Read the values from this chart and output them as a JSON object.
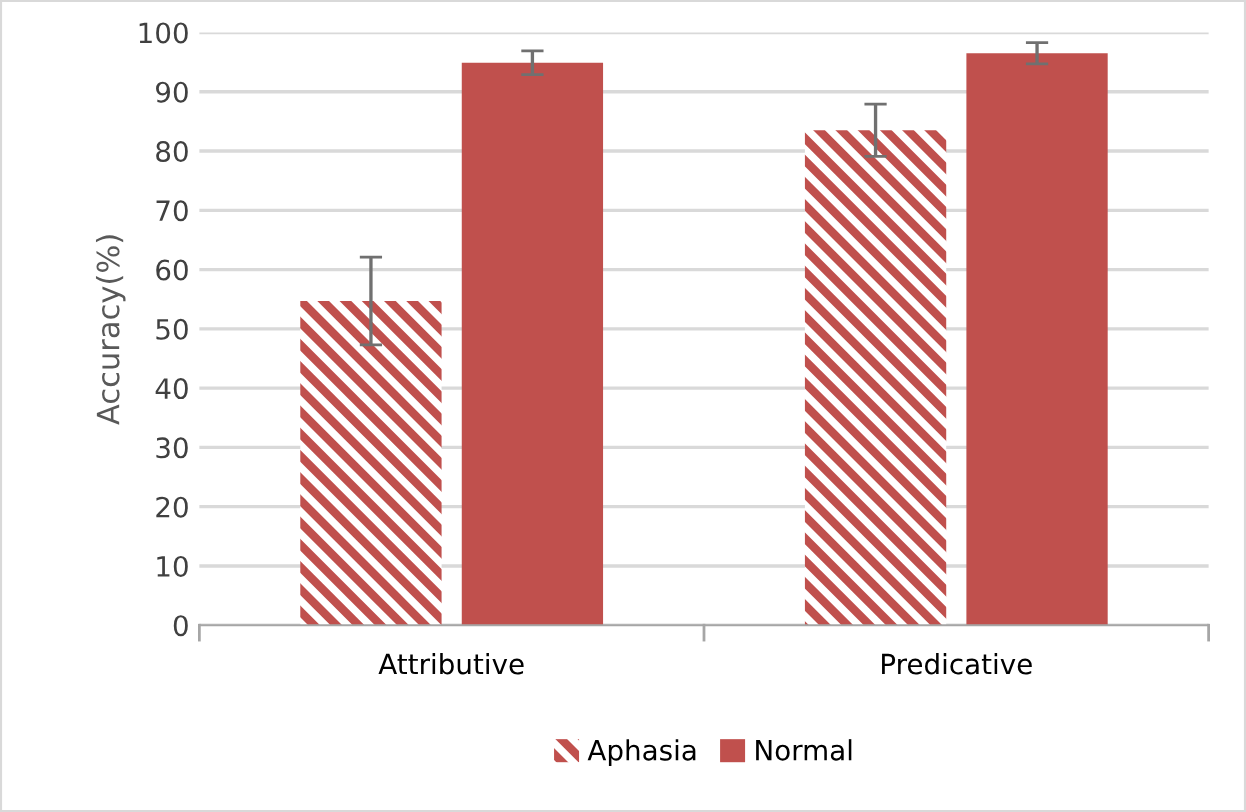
{
  "chart_data": {
    "type": "bar",
    "ylabel": "Accuracy(%)",
    "categories": [
      "Attributive",
      "Predicative"
    ],
    "series": [
      {
        "name": "Aphasia",
        "color": "#c0504d",
        "values": [
          54.7,
          83.5
        ],
        "errors": [
          7.4,
          4.4
        ]
      },
      {
        "name": "Normal",
        "color": "#c0504d",
        "values": [
          94.9,
          96.5
        ],
        "errors": [
          2,
          1.8
        ]
      }
    ],
    "ylim": [
      0,
      100
    ],
    "yticks": [
      0,
      10,
      20,
      30,
      40,
      50,
      60,
      70,
      80,
      90,
      100
    ],
    "grid": "y",
    "legend": "bottom"
  }
}
